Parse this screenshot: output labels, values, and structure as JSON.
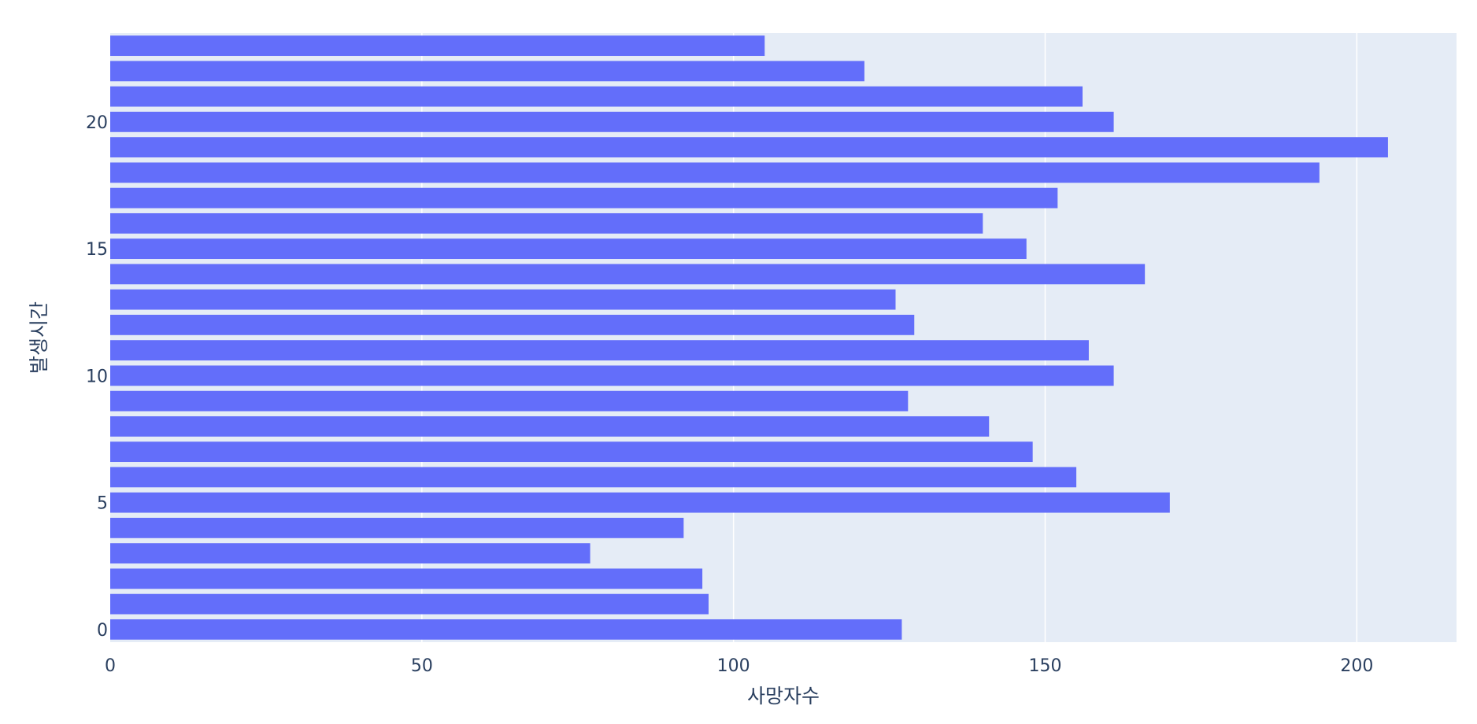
{
  "chart_data": {
    "type": "bar",
    "orientation": "horizontal",
    "xlabel": "사망자수",
    "ylabel": "발생시간",
    "xlim": [
      0,
      216
    ],
    "ylim": [
      -0.5,
      23.5
    ],
    "x_ticks": [
      0,
      50,
      100,
      150,
      200
    ],
    "y_ticks": [
      0,
      5,
      10,
      15,
      20
    ],
    "grid": true,
    "colors": {
      "bar": "#636efa",
      "plot_bg": "#e5ecf6",
      "grid": "#ffffff",
      "text": "#2a3f5f"
    },
    "categories": [
      0,
      1,
      2,
      3,
      4,
      5,
      6,
      7,
      8,
      9,
      10,
      11,
      12,
      13,
      14,
      15,
      16,
      17,
      18,
      19,
      20,
      21,
      22,
      23
    ],
    "values": [
      127,
      96,
      95,
      77,
      92,
      170,
      155,
      148,
      141,
      128,
      161,
      157,
      129,
      126,
      166,
      147,
      140,
      152,
      194,
      205,
      161,
      156,
      121,
      105
    ]
  }
}
